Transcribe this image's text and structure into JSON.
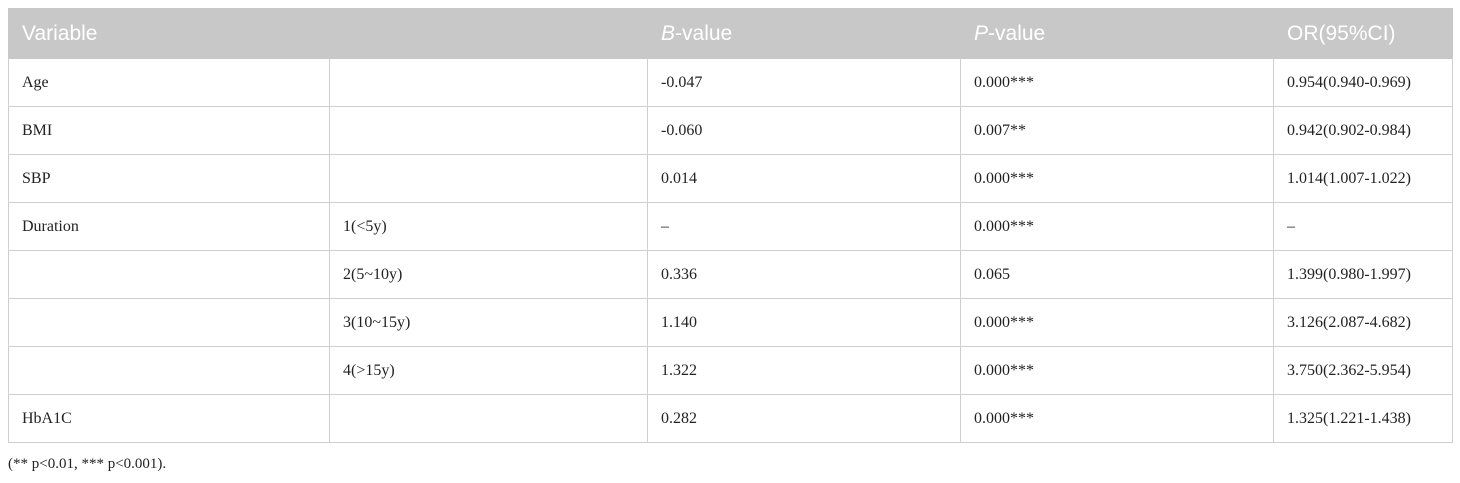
{
  "table": {
    "header": [
      "Variable",
      null,
      {
        "emph": "B",
        "rest": "-value"
      },
      {
        "emph": "P",
        "rest": "-value"
      },
      "OR(95%CI)"
    ],
    "rows": [
      [
        "Age",
        null,
        "-0.047",
        "0.000***",
        "0.954(0.940-0.969)"
      ],
      [
        "BMI",
        null,
        "-0.060",
        "0.007**",
        "0.942(0.902-0.984)"
      ],
      [
        "SBP",
        null,
        "0.014",
        "0.000***",
        "1.014(1.007-1.022)"
      ],
      [
        "Duration",
        "1(<5y)",
        "–",
        "0.000***",
        "–"
      ],
      [
        null,
        "2(5~10y)",
        "0.336",
        "0.065",
        "1.399(0.980-1.997)"
      ],
      [
        null,
        "3(10~15y)",
        "1.140",
        "0.000***",
        "3.126(2.087-4.682)"
      ],
      [
        null,
        "4(>15y)",
        "1.322",
        "0.000***",
        "3.750(2.362-5.954)"
      ],
      [
        "HbA1C",
        null,
        "0.282",
        "0.000***",
        "1.325(1.221-1.438)"
      ]
    ],
    "footnote": "(** p<0.01, *** p<0.001)."
  }
}
